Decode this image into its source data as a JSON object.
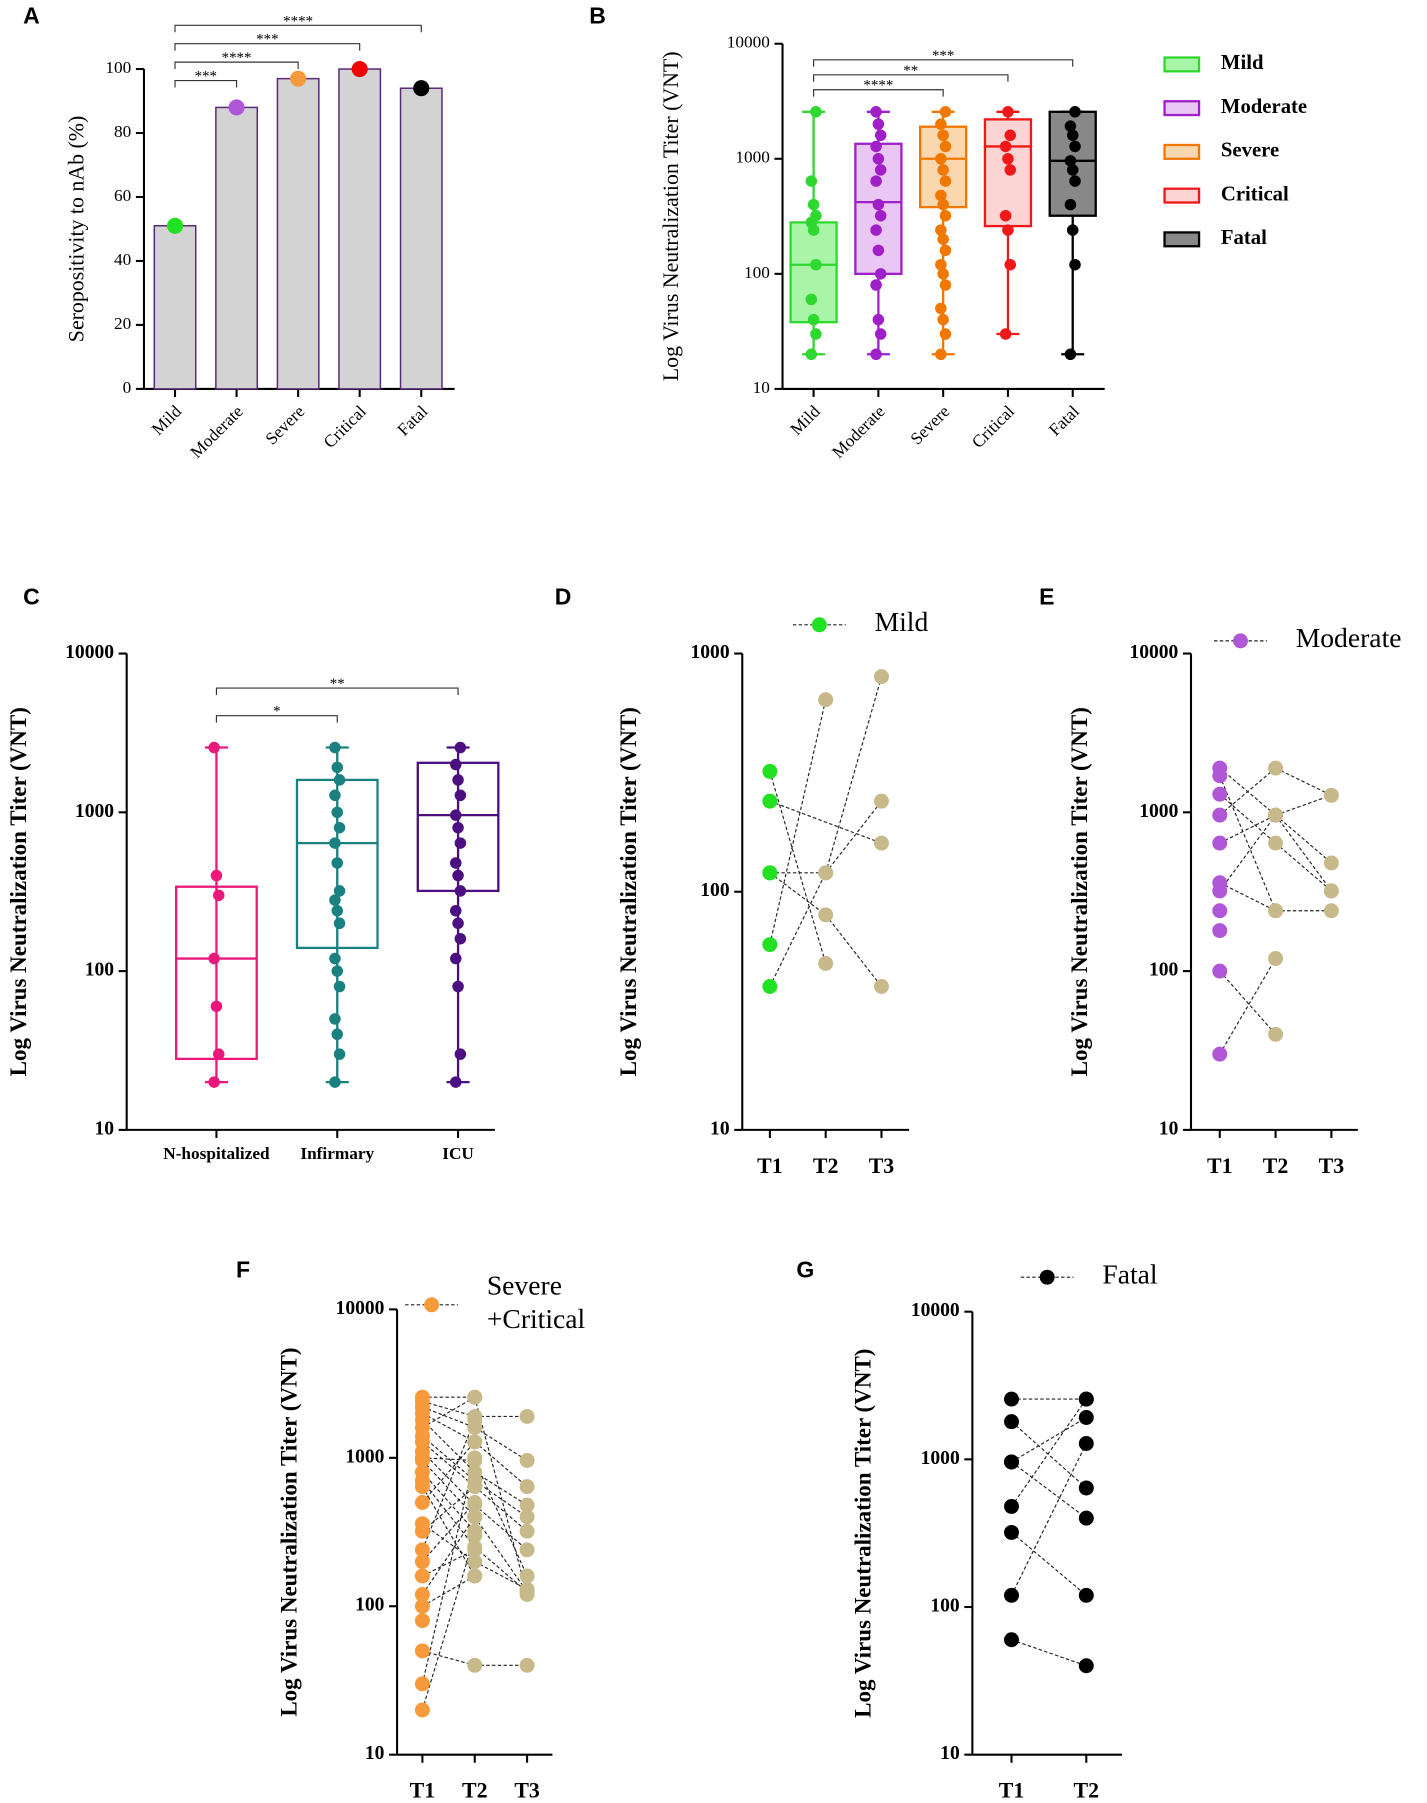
{
  "chart_data": [
    {
      "type": "bar",
      "panel": "A",
      "ylabel": "Seropositivity to nAb (%)",
      "categories": [
        "Mild",
        "Moderate",
        "Severe",
        "Critical",
        "Fatal"
      ],
      "values": [
        51,
        88,
        97,
        100,
        94
      ],
      "colors": [
        "#22e022",
        "#b057d8",
        "#f79a3c",
        "#f00000",
        "#000000"
      ],
      "bar_color": "#d3d3d3",
      "edge_color": "#5a2a7a",
      "ylim": [
        0,
        100
      ],
      "yticks": [
        0,
        20,
        40,
        60,
        80,
        100
      ],
      "significance": [
        {
          "groups": [
            "Mild",
            "Moderate"
          ],
          "label": "***"
        },
        {
          "groups": [
            "Mild",
            "Severe"
          ],
          "label": "****"
        },
        {
          "groups": [
            "Mild",
            "Critical"
          ],
          "label": "***"
        },
        {
          "groups": [
            "Mild",
            "Fatal"
          ],
          "label": "****"
        }
      ]
    },
    {
      "type": "box",
      "panel": "B",
      "ylabel": "Log Virus Neutralization Titer (VNT)",
      "log": true,
      "ylim": [
        10,
        10000
      ],
      "yticks": [
        10,
        100,
        1000,
        10000
      ],
      "legend": true,
      "filled": true,
      "series": [
        {
          "name": "Mild",
          "color": "#2fd82f",
          "fill": "#a8f5a8",
          "min": 20,
          "q1": 38,
          "median": 120,
          "q3": 280,
          "max": 2560,
          "points": [
            20,
            30,
            40,
            60,
            120,
            240,
            280,
            320,
            400,
            640,
            2560
          ]
        },
        {
          "name": "Moderate",
          "color": "#a020c8",
          "fill": "#eac6f5",
          "min": 20,
          "q1": 100,
          "median": 420,
          "q3": 1350,
          "max": 2560,
          "points": [
            20,
            30,
            40,
            80,
            100,
            160,
            240,
            320,
            400,
            640,
            800,
            1000,
            1280,
            1600,
            2000,
            2560
          ]
        },
        {
          "name": "Severe",
          "color": "#f07800",
          "fill": "#fbd7b0",
          "min": 20,
          "q1": 380,
          "median": 1000,
          "q3": 1900,
          "max": 2560,
          "points": [
            20,
            30,
            40,
            50,
            80,
            100,
            120,
            160,
            200,
            240,
            320,
            400,
            480,
            640,
            800,
            1000,
            1280,
            1600,
            2000,
            2560
          ]
        },
        {
          "name": "Critical",
          "color": "#f01818",
          "fill": "#fcd4d4",
          "min": 30,
          "q1": 260,
          "median": 1280,
          "q3": 2200,
          "max": 2560,
          "points": [
            30,
            120,
            240,
            320,
            800,
            1000,
            1280,
            1600,
            2560
          ]
        },
        {
          "name": "Fatal",
          "color": "#000000",
          "fill": "#888888",
          "min": 20,
          "q1": 320,
          "median": 960,
          "q3": 2560,
          "max": 2560,
          "points": [
            20,
            120,
            240,
            400,
            640,
            800,
            960,
            1280,
            1600,
            1920,
            2560
          ]
        }
      ],
      "significance": [
        {
          "groups": [
            "Mild",
            "Severe"
          ],
          "label": "****"
        },
        {
          "groups": [
            "Mild",
            "Critical"
          ],
          "label": "**"
        },
        {
          "groups": [
            "Mild",
            "Fatal"
          ],
          "label": "***"
        }
      ]
    },
    {
      "type": "box",
      "panel": "C",
      "ylabel": "Log Virus Neutralization Titer (VNT)",
      "log": true,
      "ylim": [
        10,
        10000
      ],
      "yticks": [
        10,
        100,
        1000,
        10000
      ],
      "legend": false,
      "filled": false,
      "series": [
        {
          "name": "N-hospitalized",
          "color": "#e8197b",
          "min": 20,
          "q1": 28,
          "median": 120,
          "q3": 340,
          "max": 2560,
          "points": [
            20,
            30,
            60,
            120,
            300,
            400,
            2560
          ]
        },
        {
          "name": "Infirmary",
          "color": "#1a8080",
          "min": 20,
          "q1": 140,
          "median": 640,
          "q3": 1600,
          "max": 2560,
          "points": [
            20,
            30,
            40,
            50,
            80,
            100,
            120,
            200,
            240,
            280,
            320,
            480,
            640,
            800,
            1000,
            1280,
            1600,
            1920,
            2560
          ]
        },
        {
          "name": "ICU",
          "color": "#4b0f82",
          "min": 20,
          "q1": 320,
          "median": 960,
          "q3": 2050,
          "max": 2560,
          "points": [
            20,
            30,
            80,
            120,
            160,
            200,
            240,
            320,
            400,
            480,
            640,
            800,
            960,
            1280,
            1600,
            2000,
            2560
          ]
        }
      ],
      "significance": [
        {
          "groups": [
            "N-hospitalized",
            "Infirmary"
          ],
          "label": "*"
        },
        {
          "groups": [
            "N-hospitalized",
            "ICU"
          ],
          "label": "**"
        }
      ]
    },
    {
      "type": "paired",
      "panel": "D",
      "ylabel": "Log Virus Neutralization Titer (VNT)",
      "log": true,
      "ylim": [
        10,
        1000
      ],
      "yticks": [
        10,
        100,
        1000
      ],
      "categories": [
        "T1",
        "T2",
        "T3"
      ],
      "legend": [
        "Mild"
      ],
      "color": "#22e022",
      "other_color": "#c8b98a",
      "subjects": [
        [
          320,
          50,
          null
        ],
        [
          240,
          null,
          160
        ],
        [
          120,
          80,
          40
        ],
        [
          120,
          120,
          800
        ],
        [
          60,
          640,
          null
        ],
        [
          40,
          120,
          240
        ]
      ]
    },
    {
      "type": "paired",
      "panel": "E",
      "ylabel": "Log Virus Neutralization Titer (VNT)",
      "log": true,
      "ylim": [
        10,
        10000
      ],
      "yticks": [
        10,
        100,
        1000,
        10000
      ],
      "categories": [
        "T1",
        "T2",
        "T3"
      ],
      "legend": [
        "Moderate"
      ],
      "color": "#b057d8",
      "other_color": "#c8b98a",
      "subjects": [
        [
          1900,
          960,
          480
        ],
        [
          1700,
          240,
          240
        ],
        [
          1300,
          640,
          320
        ],
        [
          960,
          1900,
          1280
        ],
        [
          640,
          960,
          1280
        ],
        [
          360,
          240,
          null
        ],
        [
          320,
          960,
          320
        ],
        [
          240,
          null,
          null
        ],
        [
          180,
          null,
          null
        ],
        [
          100,
          40,
          null
        ],
        [
          30,
          120,
          null
        ]
      ]
    },
    {
      "type": "paired",
      "panel": "F",
      "ylabel": "Log Virus Neutralization Titer (VNT)",
      "log": true,
      "ylim": [
        10,
        10000
      ],
      "yticks": [
        10,
        100,
        1000,
        10000
      ],
      "categories": [
        "T1",
        "T2",
        "T3"
      ],
      "legend": [
        "Severe",
        "+Critical"
      ],
      "color": "#f79a3c",
      "other_color": "#c8b98a",
      "subjects": [
        [
          2560,
          2560,
          null
        ],
        [
          2400,
          1900,
          1900
        ],
        [
          2200,
          1600,
          960
        ],
        [
          2000,
          1280,
          640
        ],
        [
          1800,
          800,
          480
        ],
        [
          1600,
          2560,
          120
        ],
        [
          1400,
          700,
          400
        ],
        [
          1280,
          640,
          320
        ],
        [
          1100,
          480,
          240
        ],
        [
          1000,
          960,
          160
        ],
        [
          960,
          400,
          125
        ],
        [
          800,
          320,
          null
        ],
        [
          700,
          250,
          125
        ],
        [
          640,
          160,
          null
        ],
        [
          500,
          1280,
          null
        ],
        [
          360,
          200,
          130
        ],
        [
          320,
          640,
          null
        ],
        [
          240,
          1800,
          null
        ],
        [
          200,
          500,
          null
        ],
        [
          160,
          240,
          null
        ],
        [
          120,
          400,
          null
        ],
        [
          100,
          160,
          null
        ],
        [
          80,
          null,
          null
        ],
        [
          50,
          40,
          40
        ],
        [
          30,
          1000,
          null
        ],
        [
          20,
          300,
          null
        ]
      ]
    },
    {
      "type": "paired",
      "panel": "G",
      "ylabel": "Log Virus Neutralization Titer (VNT)",
      "log": true,
      "ylim": [
        10,
        10000
      ],
      "yticks": [
        10,
        100,
        1000,
        10000
      ],
      "categories": [
        "T1",
        "T2"
      ],
      "legend": [
        "Fatal"
      ],
      "color": "#000000",
      "other_color": "#000000",
      "subjects": [
        [
          2560,
          2560
        ],
        [
          1800,
          640
        ],
        [
          960,
          1920
        ],
        [
          480,
          2560
        ],
        [
          320,
          120
        ],
        [
          120,
          1280
        ],
        [
          960,
          400
        ],
        [
          60,
          40
        ]
      ]
    }
  ]
}
